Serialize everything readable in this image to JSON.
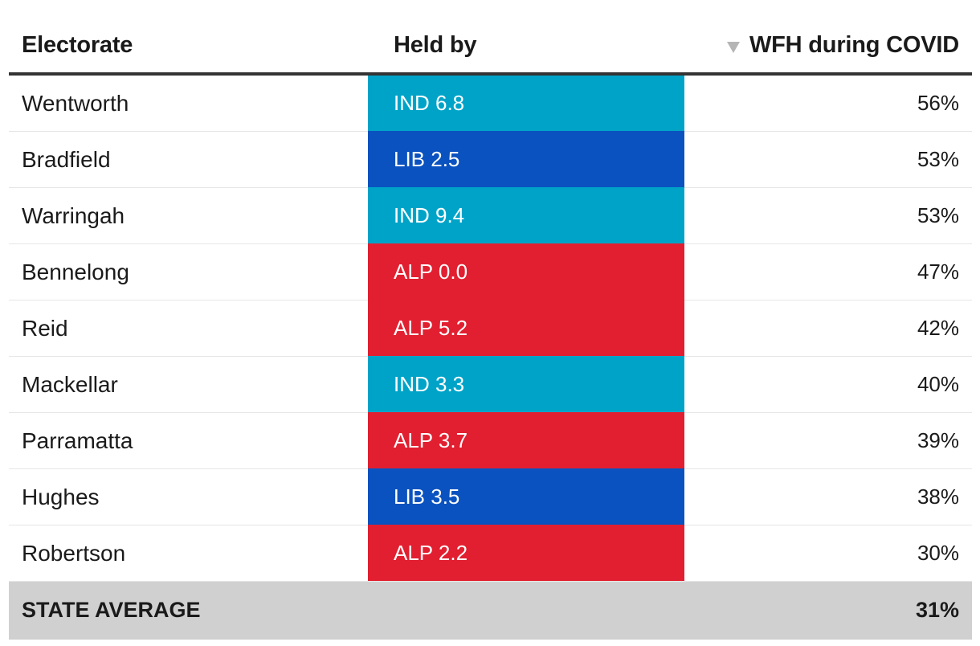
{
  "header": {
    "electorate": "Electorate",
    "held_by": "Held by",
    "wfh": "WFH during COVID",
    "sort_icon": "sort-descending-icon"
  },
  "colors": {
    "IND": "#00a3c8",
    "LIB": "#0a52bf",
    "ALP": "#e11f30"
  },
  "chart_data": {
    "type": "table",
    "columns": [
      "Electorate",
      "Held by",
      "WFH during COVID"
    ],
    "rows": [
      {
        "electorate": "Wentworth",
        "party": "IND",
        "held": "IND 6.8",
        "margin": 6.8,
        "wfh": "56%",
        "wfh_value": 56
      },
      {
        "electorate": "Bradfield",
        "party": "LIB",
        "held": "LIB 2.5",
        "margin": 2.5,
        "wfh": "53%",
        "wfh_value": 53
      },
      {
        "electorate": "Warringah",
        "party": "IND",
        "held": "IND 9.4",
        "margin": 9.4,
        "wfh": "53%",
        "wfh_value": 53
      },
      {
        "electorate": "Bennelong",
        "party": "ALP",
        "held": "ALP 0.0",
        "margin": 0.0,
        "wfh": "47%",
        "wfh_value": 47
      },
      {
        "electorate": "Reid",
        "party": "ALP",
        "held": "ALP 5.2",
        "margin": 5.2,
        "wfh": "42%",
        "wfh_value": 42
      },
      {
        "electorate": "Mackellar",
        "party": "IND",
        "held": "IND 3.3",
        "margin": 3.3,
        "wfh": "40%",
        "wfh_value": 40
      },
      {
        "electorate": "Parramatta",
        "party": "ALP",
        "held": "ALP 3.7",
        "margin": 3.7,
        "wfh": "39%",
        "wfh_value": 39
      },
      {
        "electorate": "Hughes",
        "party": "LIB",
        "held": "LIB 3.5",
        "margin": 3.5,
        "wfh": "38%",
        "wfh_value": 38
      },
      {
        "electorate": "Robertson",
        "party": "ALP",
        "held": "ALP 2.2",
        "margin": 2.2,
        "wfh": "30%",
        "wfh_value": 30
      }
    ],
    "average": {
      "label": "STATE AVERAGE",
      "wfh": "31%",
      "wfh_value": 31
    },
    "sort": {
      "column": "WFH during COVID",
      "direction": "descending"
    }
  }
}
